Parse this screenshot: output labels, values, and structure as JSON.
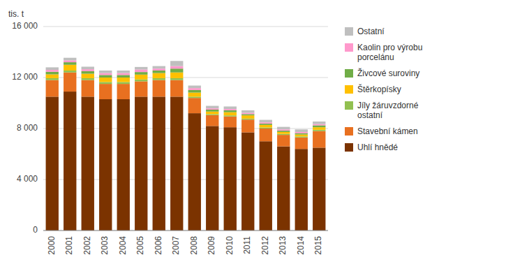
{
  "chart_data": {
    "type": "bar",
    "stacked": true,
    "y_label": "tis. t",
    "categories": [
      "2000",
      "2001",
      "2002",
      "2003",
      "2004",
      "2005",
      "2006",
      "2007",
      "2008",
      "2009",
      "2010",
      "2011",
      "2012",
      "2013",
      "2014",
      "2015"
    ],
    "series": [
      {
        "name": "Uhlí hnědé",
        "color": "#7B3300",
        "values": [
          10500,
          10900,
          10500,
          10300,
          10300,
          10500,
          10500,
          10500,
          9200,
          8200,
          8100,
          7700,
          7000,
          6600,
          6400,
          6500
        ]
      },
      {
        "name": "Stavební kámen",
        "color": "#E87020",
        "values": [
          1300,
          1500,
          1300,
          1200,
          1200,
          1200,
          1300,
          1300,
          1200,
          850,
          850,
          1000,
          1000,
          900,
          900,
          1300
        ]
      },
      {
        "name": "Jíly žáruvzdorné\nostatní",
        "color": "#92C050",
        "values": [
          150,
          150,
          150,
          150,
          150,
          150,
          150,
          150,
          100,
          80,
          80,
          80,
          80,
          80,
          80,
          100
        ]
      },
      {
        "name": "Štěrkopísky",
        "color": "#FFC000",
        "values": [
          300,
          450,
          350,
          350,
          350,
          380,
          400,
          450,
          320,
          200,
          250,
          250,
          200,
          150,
          150,
          200
        ]
      },
      {
        "name": "Živcové suroviny",
        "color": "#70AD47",
        "values": [
          200,
          200,
          200,
          200,
          200,
          200,
          200,
          300,
          200,
          150,
          150,
          100,
          100,
          100,
          100,
          150
        ]
      },
      {
        "name": "Kaolin pro výrobu\nporcelánu",
        "color": "#FF99CC",
        "values": [
          150,
          150,
          150,
          150,
          150,
          200,
          150,
          200,
          150,
          100,
          100,
          100,
          100,
          100,
          100,
          100
        ]
      },
      {
        "name": "Ostatní",
        "color": "#BFBFBF",
        "values": [
          200,
          200,
          200,
          200,
          200,
          200,
          200,
          400,
          200,
          200,
          200,
          200,
          200,
          200,
          200,
          200
        ]
      }
    ],
    "ylim": [
      0,
      16000
    ],
    "yticks": [
      0,
      {
        "value": 4000,
        "label": "4 000"
      },
      {
        "value": 8000,
        "label": "8 000"
      },
      {
        "value": 12000,
        "label": "12 000"
      },
      {
        "value": 16000,
        "label": "16 000"
      }
    ],
    "grid": true,
    "legend": "right"
  }
}
